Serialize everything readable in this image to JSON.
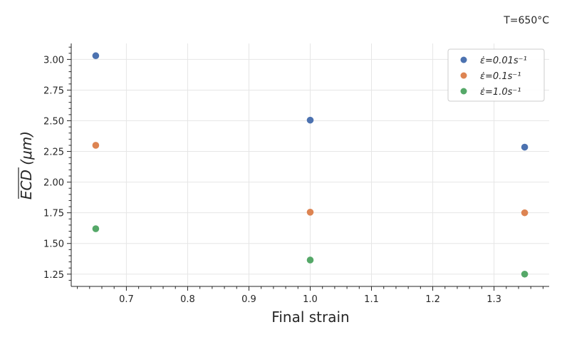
{
  "chart_data": {
    "type": "scatter",
    "annotation": "T=650°C",
    "xlabel": "Final strain",
    "ylabel": "ECD (μm)",
    "xlim": [
      0.61,
      1.39
    ],
    "ylim": [
      1.15,
      3.13
    ],
    "xticks": [
      0.7,
      0.8,
      0.9,
      1.0,
      1.1,
      1.2,
      1.3
    ],
    "xtick_labels": [
      "0.7",
      "0.8",
      "0.9",
      "1.0",
      "1.1",
      "1.2",
      "1.3"
    ],
    "yticks": [
      1.25,
      1.5,
      1.75,
      2.0,
      2.25,
      2.5,
      2.75,
      3.0
    ],
    "ytick_labels": [
      "1.25",
      "1.50",
      "1.75",
      "2.00",
      "2.25",
      "2.50",
      "2.75",
      "3.00"
    ],
    "grid": true,
    "legend_position": "top-right",
    "series": [
      {
        "name": "ε̇=0.01s⁻¹",
        "color": "#4c72b0",
        "x": [
          0.65,
          1.0,
          1.35
        ],
        "y": [
          3.03,
          2.505,
          2.285
        ]
      },
      {
        "name": "ε̇=0.1s⁻¹",
        "color": "#dd8452",
        "x": [
          0.65,
          1.0,
          1.35
        ],
        "y": [
          2.3,
          1.755,
          1.75
        ]
      },
      {
        "name": "ε̇=1.0s⁻¹",
        "color": "#55a868",
        "x": [
          0.65,
          1.0,
          1.35
        ],
        "y": [
          1.62,
          1.365,
          1.25
        ]
      }
    ]
  }
}
